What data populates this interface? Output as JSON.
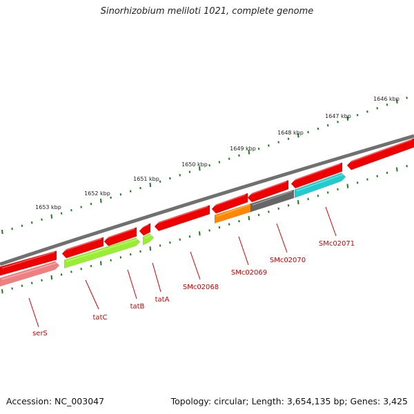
{
  "title": "Sinorhizobium meliloti 1021, complete genome",
  "footer": {
    "accession": "Accession: NC_003047",
    "topology": "Topology: circular; Length: 3,654,135 bp; Genes: 3,425"
  },
  "scale_labels": [
    "1646 kbp",
    "1647 kbp",
    "1648 kbp",
    "1649 kbp",
    "1650 kbp",
    "1651 kbp",
    "1652 kbp",
    "1653 kbp"
  ],
  "colors": {
    "backbone": "#707070",
    "ticks": "#1e7a1e",
    "cds": "#ee0000",
    "label": "#cc0000",
    "serS": "#f08080",
    "tat": "#99ee33",
    "SMc02069": "#ff8800",
    "SMc02070": "#666666",
    "SMc02071": "#22cccc"
  },
  "genes": [
    {
      "name": "serS"
    },
    {
      "name": "tatC"
    },
    {
      "name": "tatB"
    },
    {
      "name": "tatA"
    },
    {
      "name": "SMc02068"
    },
    {
      "name": "SMc02069"
    },
    {
      "name": "SMc02070"
    },
    {
      "name": "SMc02071"
    }
  ]
}
